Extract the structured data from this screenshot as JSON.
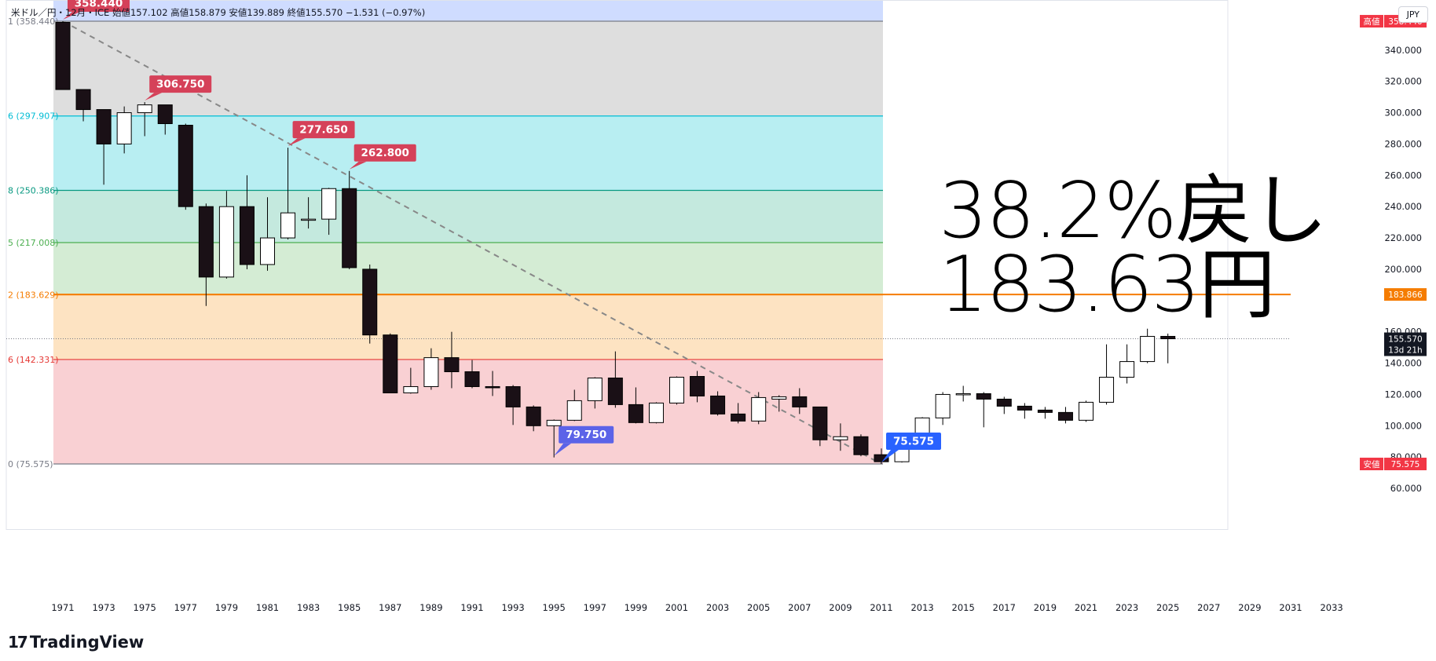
{
  "legend": {
    "symbol": "米ドル／円・12月・ICE",
    "open_label": "始値",
    "open": "157.102",
    "high_label": "高値",
    "high": "158.879",
    "low_label": "安値",
    "low": "139.889",
    "close_label": "終値",
    "close": "155.570",
    "change": "−1.531 (−0.97%)"
  },
  "currency_button": "JPY",
  "annotation": {
    "line1": "38.2%戻し",
    "line2": "183.63円"
  },
  "brand": {
    "logo": "17",
    "name": "TradingView"
  },
  "colors": {
    "up_candle": "#ffffff",
    "down_candle": "#1a1016",
    "candle_border": "#000000",
    "current_price_line": "#787b86",
    "fib_382_line": "#f57c00",
    "high_badge": "#f23645",
    "low_badge": "#f23645"
  },
  "chart_data": {
    "type": "candlestick",
    "x_axis": {
      "ticks": [
        "1971",
        "1973",
        "1975",
        "1977",
        "1979",
        "1981",
        "1983",
        "1985",
        "1987",
        "1989",
        "1991",
        "1993",
        "1995",
        "1997",
        "1999",
        "2001",
        "2003",
        "2005",
        "2007",
        "2009",
        "2011",
        "2013",
        "2015",
        "2017",
        "2019",
        "2021",
        "2023",
        "2025",
        "2027",
        "2029",
        "2031",
        "2033"
      ]
    },
    "y_axis": {
      "ticks": [
        "60.000",
        "80.000",
        "100.000",
        "120.000",
        "140.000",
        "160.000",
        "200.000",
        "220.000",
        "240.000",
        "260.000",
        "280.000",
        "300.000",
        "320.000",
        "340.000"
      ],
      "ylim": [
        48,
        372
      ]
    },
    "candles": [
      {
        "x": 1971,
        "o": 357.7,
        "h": 358.44,
        "l": 314.8,
        "c": 314.8
      },
      {
        "x": 1972,
        "o": 314.8,
        "h": 314.8,
        "l": 294.5,
        "c": 302.0
      },
      {
        "x": 1973,
        "o": 302.0,
        "h": 302.0,
        "l": 254.0,
        "c": 280.0
      },
      {
        "x": 1974,
        "o": 280.0,
        "h": 304.0,
        "l": 274.0,
        "c": 300.0
      },
      {
        "x": 1975,
        "o": 300.0,
        "h": 306.75,
        "l": 285.0,
        "c": 305.0
      },
      {
        "x": 1976,
        "o": 305.0,
        "h": 305.0,
        "l": 286.0,
        "c": 293.0
      },
      {
        "x": 1977,
        "o": 292.0,
        "h": 293.0,
        "l": 238.0,
        "c": 240.0
      },
      {
        "x": 1978,
        "o": 240.0,
        "h": 242.0,
        "l": 176.5,
        "c": 195.0
      },
      {
        "x": 1979,
        "o": 195.0,
        "h": 250.0,
        "l": 194.0,
        "c": 240.0
      },
      {
        "x": 1980,
        "o": 240.0,
        "h": 260.0,
        "l": 200.0,
        "c": 203.0
      },
      {
        "x": 1981,
        "o": 203.0,
        "h": 246.0,
        "l": 199.0,
        "c": 220.0
      },
      {
        "x": 1982,
        "o": 220.0,
        "h": 277.65,
        "l": 219.0,
        "c": 236.0
      },
      {
        "x": 1983,
        "o": 232.0,
        "h": 246.0,
        "l": 226.0,
        "c": 232.0
      },
      {
        "x": 1984,
        "o": 232.0,
        "h": 252.0,
        "l": 222.0,
        "c": 251.5
      },
      {
        "x": 1985,
        "o": 251.5,
        "h": 262.8,
        "l": 200.0,
        "c": 201.0
      },
      {
        "x": 1986,
        "o": 200.0,
        "h": 203.0,
        "l": 152.5,
        "c": 158.0
      },
      {
        "x": 1987,
        "o": 158.0,
        "h": 159.0,
        "l": 121.0,
        "c": 121.0
      },
      {
        "x": 1988,
        "o": 121.0,
        "h": 137.0,
        "l": 120.5,
        "c": 125.0
      },
      {
        "x": 1989,
        "o": 125.0,
        "h": 149.5,
        "l": 123.0,
        "c": 143.5
      },
      {
        "x": 1990,
        "o": 143.5,
        "h": 160.0,
        "l": 124.0,
        "c": 134.5
      },
      {
        "x": 1991,
        "o": 134.5,
        "h": 142.0,
        "l": 124.0,
        "c": 125.0
      },
      {
        "x": 1992,
        "o": 125.0,
        "h": 135.0,
        "l": 119.0,
        "c": 124.5
      },
      {
        "x": 1993,
        "o": 125.0,
        "h": 126.0,
        "l": 100.5,
        "c": 112.0
      },
      {
        "x": 1994,
        "o": 112.0,
        "h": 113.0,
        "l": 96.5,
        "c": 100.0
      },
      {
        "x": 1995,
        "o": 100.0,
        "h": 104.0,
        "l": 79.75,
        "c": 103.5
      },
      {
        "x": 1996,
        "o": 103.5,
        "h": 123.0,
        "l": 103.0,
        "c": 116.0
      },
      {
        "x": 1997,
        "o": 116.0,
        "h": 131.0,
        "l": 111.0,
        "c": 130.5
      },
      {
        "x": 1998,
        "o": 130.5,
        "h": 147.5,
        "l": 111.5,
        "c": 113.5
      },
      {
        "x": 1999,
        "o": 113.5,
        "h": 124.5,
        "l": 101.5,
        "c": 102.0
      },
      {
        "x": 2000,
        "o": 102.0,
        "h": 115.0,
        "l": 101.5,
        "c": 114.5
      },
      {
        "x": 2001,
        "o": 114.5,
        "h": 131.5,
        "l": 113.5,
        "c": 131.0
      },
      {
        "x": 2002,
        "o": 131.5,
        "h": 135.0,
        "l": 115.0,
        "c": 119.0
      },
      {
        "x": 2003,
        "o": 119.0,
        "h": 122.0,
        "l": 106.5,
        "c": 107.5
      },
      {
        "x": 2004,
        "o": 107.5,
        "h": 114.5,
        "l": 101.5,
        "c": 103.0
      },
      {
        "x": 2005,
        "o": 103.0,
        "h": 121.5,
        "l": 101.0,
        "c": 118.0
      },
      {
        "x": 2006,
        "o": 117.0,
        "h": 119.5,
        "l": 109.0,
        "c": 118.5
      },
      {
        "x": 2007,
        "o": 118.5,
        "h": 124.0,
        "l": 107.5,
        "c": 112.0
      },
      {
        "x": 2008,
        "o": 112.0,
        "h": 112.0,
        "l": 87.0,
        "c": 91.0
      },
      {
        "x": 2009,
        "o": 91.0,
        "h": 101.5,
        "l": 84.0,
        "c": 93.0
      },
      {
        "x": 2010,
        "o": 93.0,
        "h": 94.5,
        "l": 80.5,
        "c": 81.5
      },
      {
        "x": 2011,
        "o": 81.5,
        "h": 85.5,
        "l": 75.575,
        "c": 77.0
      },
      {
        "x": 2012,
        "o": 77.0,
        "h": 87.0,
        "l": 76.5,
        "c": 86.5
      },
      {
        "x": 2013,
        "o": 86.5,
        "h": 105.5,
        "l": 86.0,
        "c": 105.0
      },
      {
        "x": 2014,
        "o": 105.0,
        "h": 121.5,
        "l": 100.5,
        "c": 120.0
      },
      {
        "x": 2015,
        "o": 120.0,
        "h": 125.5,
        "l": 115.5,
        "c": 120.5
      },
      {
        "x": 2016,
        "o": 120.5,
        "h": 121.5,
        "l": 99.0,
        "c": 117.0
      },
      {
        "x": 2017,
        "o": 117.0,
        "h": 118.5,
        "l": 107.5,
        "c": 112.5
      },
      {
        "x": 2018,
        "o": 112.5,
        "h": 114.5,
        "l": 104.5,
        "c": 110.0
      },
      {
        "x": 2019,
        "o": 110.0,
        "h": 112.0,
        "l": 104.5,
        "c": 108.5
      },
      {
        "x": 2020,
        "o": 108.5,
        "h": 112.0,
        "l": 101.5,
        "c": 103.5
      },
      {
        "x": 2021,
        "o": 103.5,
        "h": 116.0,
        "l": 102.5,
        "c": 115.0
      },
      {
        "x": 2022,
        "o": 115.0,
        "h": 152.0,
        "l": 113.5,
        "c": 131.0
      },
      {
        "x": 2023,
        "o": 131.0,
        "h": 152.0,
        "l": 127.0,
        "c": 141.0
      },
      {
        "x": 2024,
        "o": 141.0,
        "h": 162.0,
        "l": 140.0,
        "c": 157.1
      },
      {
        "x": 2025,
        "o": 157.102,
        "h": 158.879,
        "l": 139.889,
        "c": 155.57
      }
    ],
    "fib_levels": [
      {
        "label": "1 (358.440)",
        "value": 358.44,
        "color": "#787b86",
        "fill": "#dedede"
      },
      {
        "label": "6 (297.907)",
        "value": 297.907,
        "color": "#00bcd4",
        "fill": "#b8eef2"
      },
      {
        "label": "8 (250.386)",
        "value": 250.386,
        "color": "#089981",
        "fill": "#c4e9de"
      },
      {
        "label": "5 (217.008)",
        "value": 217.008,
        "color": "#4caf50",
        "fill": "#d4ecd4"
      },
      {
        "label": "2 (183.629)",
        "value": 183.629,
        "color": "#f57c00",
        "fill": "#fde3c2"
      },
      {
        "label": "6 (142.331)",
        "value": 142.331,
        "color": "#e53935",
        "fill": "#f9d0d3"
      },
      {
        "label": "0 (75.575)",
        "value": 75.575,
        "color": "#787b86",
        "fill": null
      }
    ],
    "fib_top_band_fill": "#cfdcff",
    "trend_line": {
      "from": {
        "x": 1971,
        "y": 358.44
      },
      "to": {
        "x": 2011,
        "y": 75.575
      }
    },
    "callouts": [
      {
        "text": "358.440",
        "x": 1971,
        "y": 358.44,
        "color": "#d54159",
        "dir": "up"
      },
      {
        "text": "306.750",
        "x": 1975,
        "y": 306.75,
        "color": "#d54159",
        "dir": "up"
      },
      {
        "text": "277.650",
        "x": 1982,
        "y": 277.65,
        "color": "#d54159",
        "dir": "up"
      },
      {
        "text": "262.800",
        "x": 1985,
        "y": 262.8,
        "color": "#d54159",
        "dir": "up"
      },
      {
        "text": "79.750",
        "x": 1995,
        "y": 79.75,
        "color": "#5b63e8",
        "dir": "down"
      },
      {
        "text": "75.575",
        "x": 2011,
        "y": 75.575,
        "color": "#2962ff",
        "dir": "down"
      }
    ],
    "price_badges": [
      {
        "label": "高値",
        "value": "358.440",
        "y": 358.44,
        "color": "#f23645"
      },
      {
        "label": "",
        "value": "183.866",
        "y": 183.866,
        "color": "#f57c00"
      },
      {
        "label": "",
        "value": "155.570",
        "extra": "13d 21h",
        "y": 155.57,
        "color": "#131722"
      },
      {
        "label": "安値",
        "value": "75.575",
        "y": 75.575,
        "color": "#f23645"
      }
    ],
    "line_183_866": 183.866,
    "current_price": 155.57
  }
}
